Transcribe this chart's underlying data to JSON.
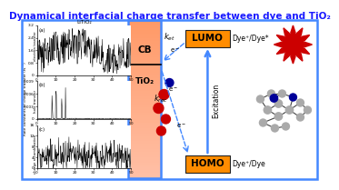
{
  "title": "Dynamical interfacial charge transfer between dye and TiO₂",
  "title_fontsize": 7.5,
  "title_color": "#1a1aff",
  "bg_color": "#ffffff",
  "border_color": "#4488ff",
  "border_lw": 1.8,
  "tio2_label": "TiO₂",
  "cb_label": "CB",
  "lumo_label": "LUMO",
  "homo_label": "HOMO",
  "lumo_text": "Dye⁺/Dye*",
  "homo_text": "Dye⁺/Dye",
  "excitation_label": "Excitation",
  "subplot_title": "LiTiO₂",
  "subplot_a_label": "(a)",
  "subplot_b_label": "(b)",
  "subplot_c_label": "(c)",
  "ylabel_top": "electron transfer",
  "ylabel_mid": "hole transfer",
  "ylabel_bot": "charge recombination",
  "ylabel_main": "Rate constants of charge transfer (fs⁻¹)",
  "orange_box_color": "#FF8C00",
  "tio2_fill_top": "#FFDDCC",
  "tio2_fill_bot": "#FFB088",
  "tio2_border": "#4488ff",
  "sun_color": "#cc0000",
  "arrow_color": "#4488ff",
  "dashed_color": "#4488ff",
  "mol_gray": "#aaaaaa",
  "mol_blue": "#000099",
  "mol_red": "#cc0000"
}
